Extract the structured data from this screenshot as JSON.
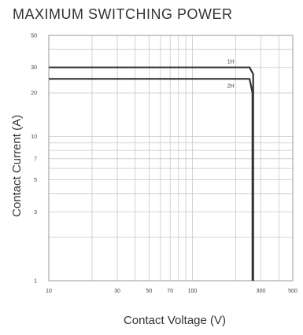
{
  "chart_data": {
    "type": "line",
    "title": "MAXIMUM SWITCHING POWER",
    "xlabel": "Contact Voltage (V)",
    "ylabel": "Contact Current (A)",
    "x_scale": "log",
    "y_scale": "log",
    "xlim": [
      10,
      500
    ],
    "ylim": [
      1,
      50
    ],
    "x_ticks": [
      10,
      30,
      50,
      70,
      100,
      300,
      500
    ],
    "x_tick_labels": [
      "10",
      "30",
      "50",
      "70",
      "100",
      "300",
      "500"
    ],
    "y_ticks": [
      1,
      3,
      5,
      7,
      10,
      20,
      30,
      50
    ],
    "y_tick_labels": [
      "1",
      "3",
      "5",
      "7",
      "10",
      "20",
      "30",
      "50"
    ],
    "grid": true,
    "line_color": "#333333",
    "series": [
      {
        "name": "1H",
        "x": [
          10,
          250,
          265,
          265
        ],
        "y": [
          30,
          30,
          27,
          1
        ]
      },
      {
        "name": "2H",
        "x": [
          10,
          250,
          262,
          262
        ],
        "y": [
          25,
          25,
          20,
          1
        ]
      }
    ]
  }
}
